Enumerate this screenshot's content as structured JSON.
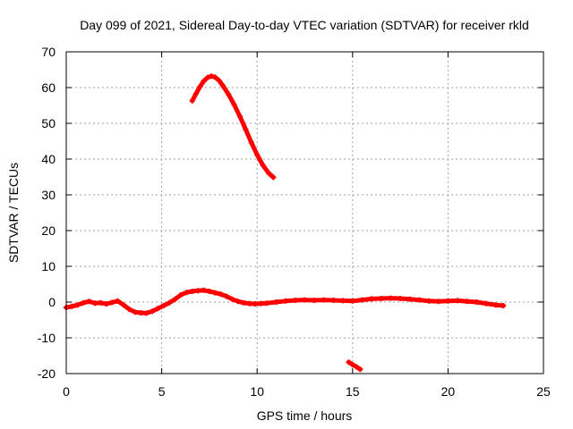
{
  "chart_data": {
    "type": "line",
    "title": "Day 099 of 2021, Sidereal Day-to-day VTEC variation (SDTVAR) for receiver rkld",
    "xlabel": "GPS time / hours",
    "ylabel": "SDTVAR / TECUs",
    "xlim": [
      0,
      25
    ],
    "ylim": [
      -20,
      70
    ],
    "xticks": [
      0,
      5,
      10,
      15,
      20,
      25
    ],
    "yticks": [
      -20,
      -10,
      0,
      10,
      20,
      30,
      40,
      50,
      60,
      70
    ],
    "grid": true,
    "color": "#ff0000",
    "series": [
      {
        "name": "main",
        "x": [
          0.0,
          0.3,
          0.6,
          0.9,
          1.2,
          1.5,
          1.8,
          2.1,
          2.4,
          2.7,
          3.0,
          3.3,
          3.6,
          3.9,
          4.2,
          4.5,
          4.8,
          5.1,
          5.4,
          5.7,
          6.0,
          6.3,
          6.6,
          6.9,
          7.2,
          7.5,
          7.8,
          8.1,
          8.4,
          8.7,
          9.0,
          9.3,
          9.6,
          9.9,
          10.2,
          10.5,
          11.0,
          11.5,
          12.0,
          12.5,
          13.0,
          13.5,
          14.0,
          14.5,
          15.0,
          15.5,
          16.0,
          16.5,
          17.0,
          17.5,
          18.0,
          18.5,
          19.0,
          19.5,
          20.0,
          20.5,
          21.0,
          21.5,
          22.0,
          22.5,
          22.9
        ],
        "y": [
          -1.5,
          -1.2,
          -0.8,
          -0.2,
          0.2,
          -0.3,
          -0.2,
          -0.5,
          -0.1,
          0.3,
          -0.8,
          -2.0,
          -2.8,
          -3.0,
          -3.1,
          -2.6,
          -1.8,
          -1.0,
          -0.2,
          0.8,
          2.0,
          2.7,
          3.0,
          3.2,
          3.3,
          3.0,
          2.6,
          2.2,
          1.6,
          0.8,
          0.2,
          -0.2,
          -0.4,
          -0.5,
          -0.4,
          -0.3,
          0.0,
          0.3,
          0.5,
          0.6,
          0.5,
          0.6,
          0.5,
          0.4,
          0.3,
          0.6,
          0.9,
          1.0,
          1.1,
          1.0,
          0.8,
          0.6,
          0.3,
          0.2,
          0.3,
          0.4,
          0.2,
          0.0,
          -0.4,
          -0.8,
          -1.0
        ]
      },
      {
        "name": "peak",
        "x": [
          6.6,
          6.8,
          7.0,
          7.2,
          7.4,
          7.6,
          7.8,
          8.0,
          8.2,
          8.5,
          8.8,
          9.1,
          9.4,
          9.7,
          10.0,
          10.3,
          10.6,
          10.85
        ],
        "y": [
          56.3,
          58.3,
          60.2,
          61.8,
          62.8,
          63.2,
          62.9,
          62.0,
          60.6,
          58.1,
          55.2,
          51.9,
          48.3,
          44.6,
          41.2,
          38.3,
          36.1,
          34.9
        ]
      },
      {
        "name": "dip",
        "x": [
          14.8,
          15.0,
          15.2,
          15.4
        ],
        "y": [
          -16.8,
          -17.5,
          -18.1,
          -18.8
        ]
      }
    ]
  }
}
